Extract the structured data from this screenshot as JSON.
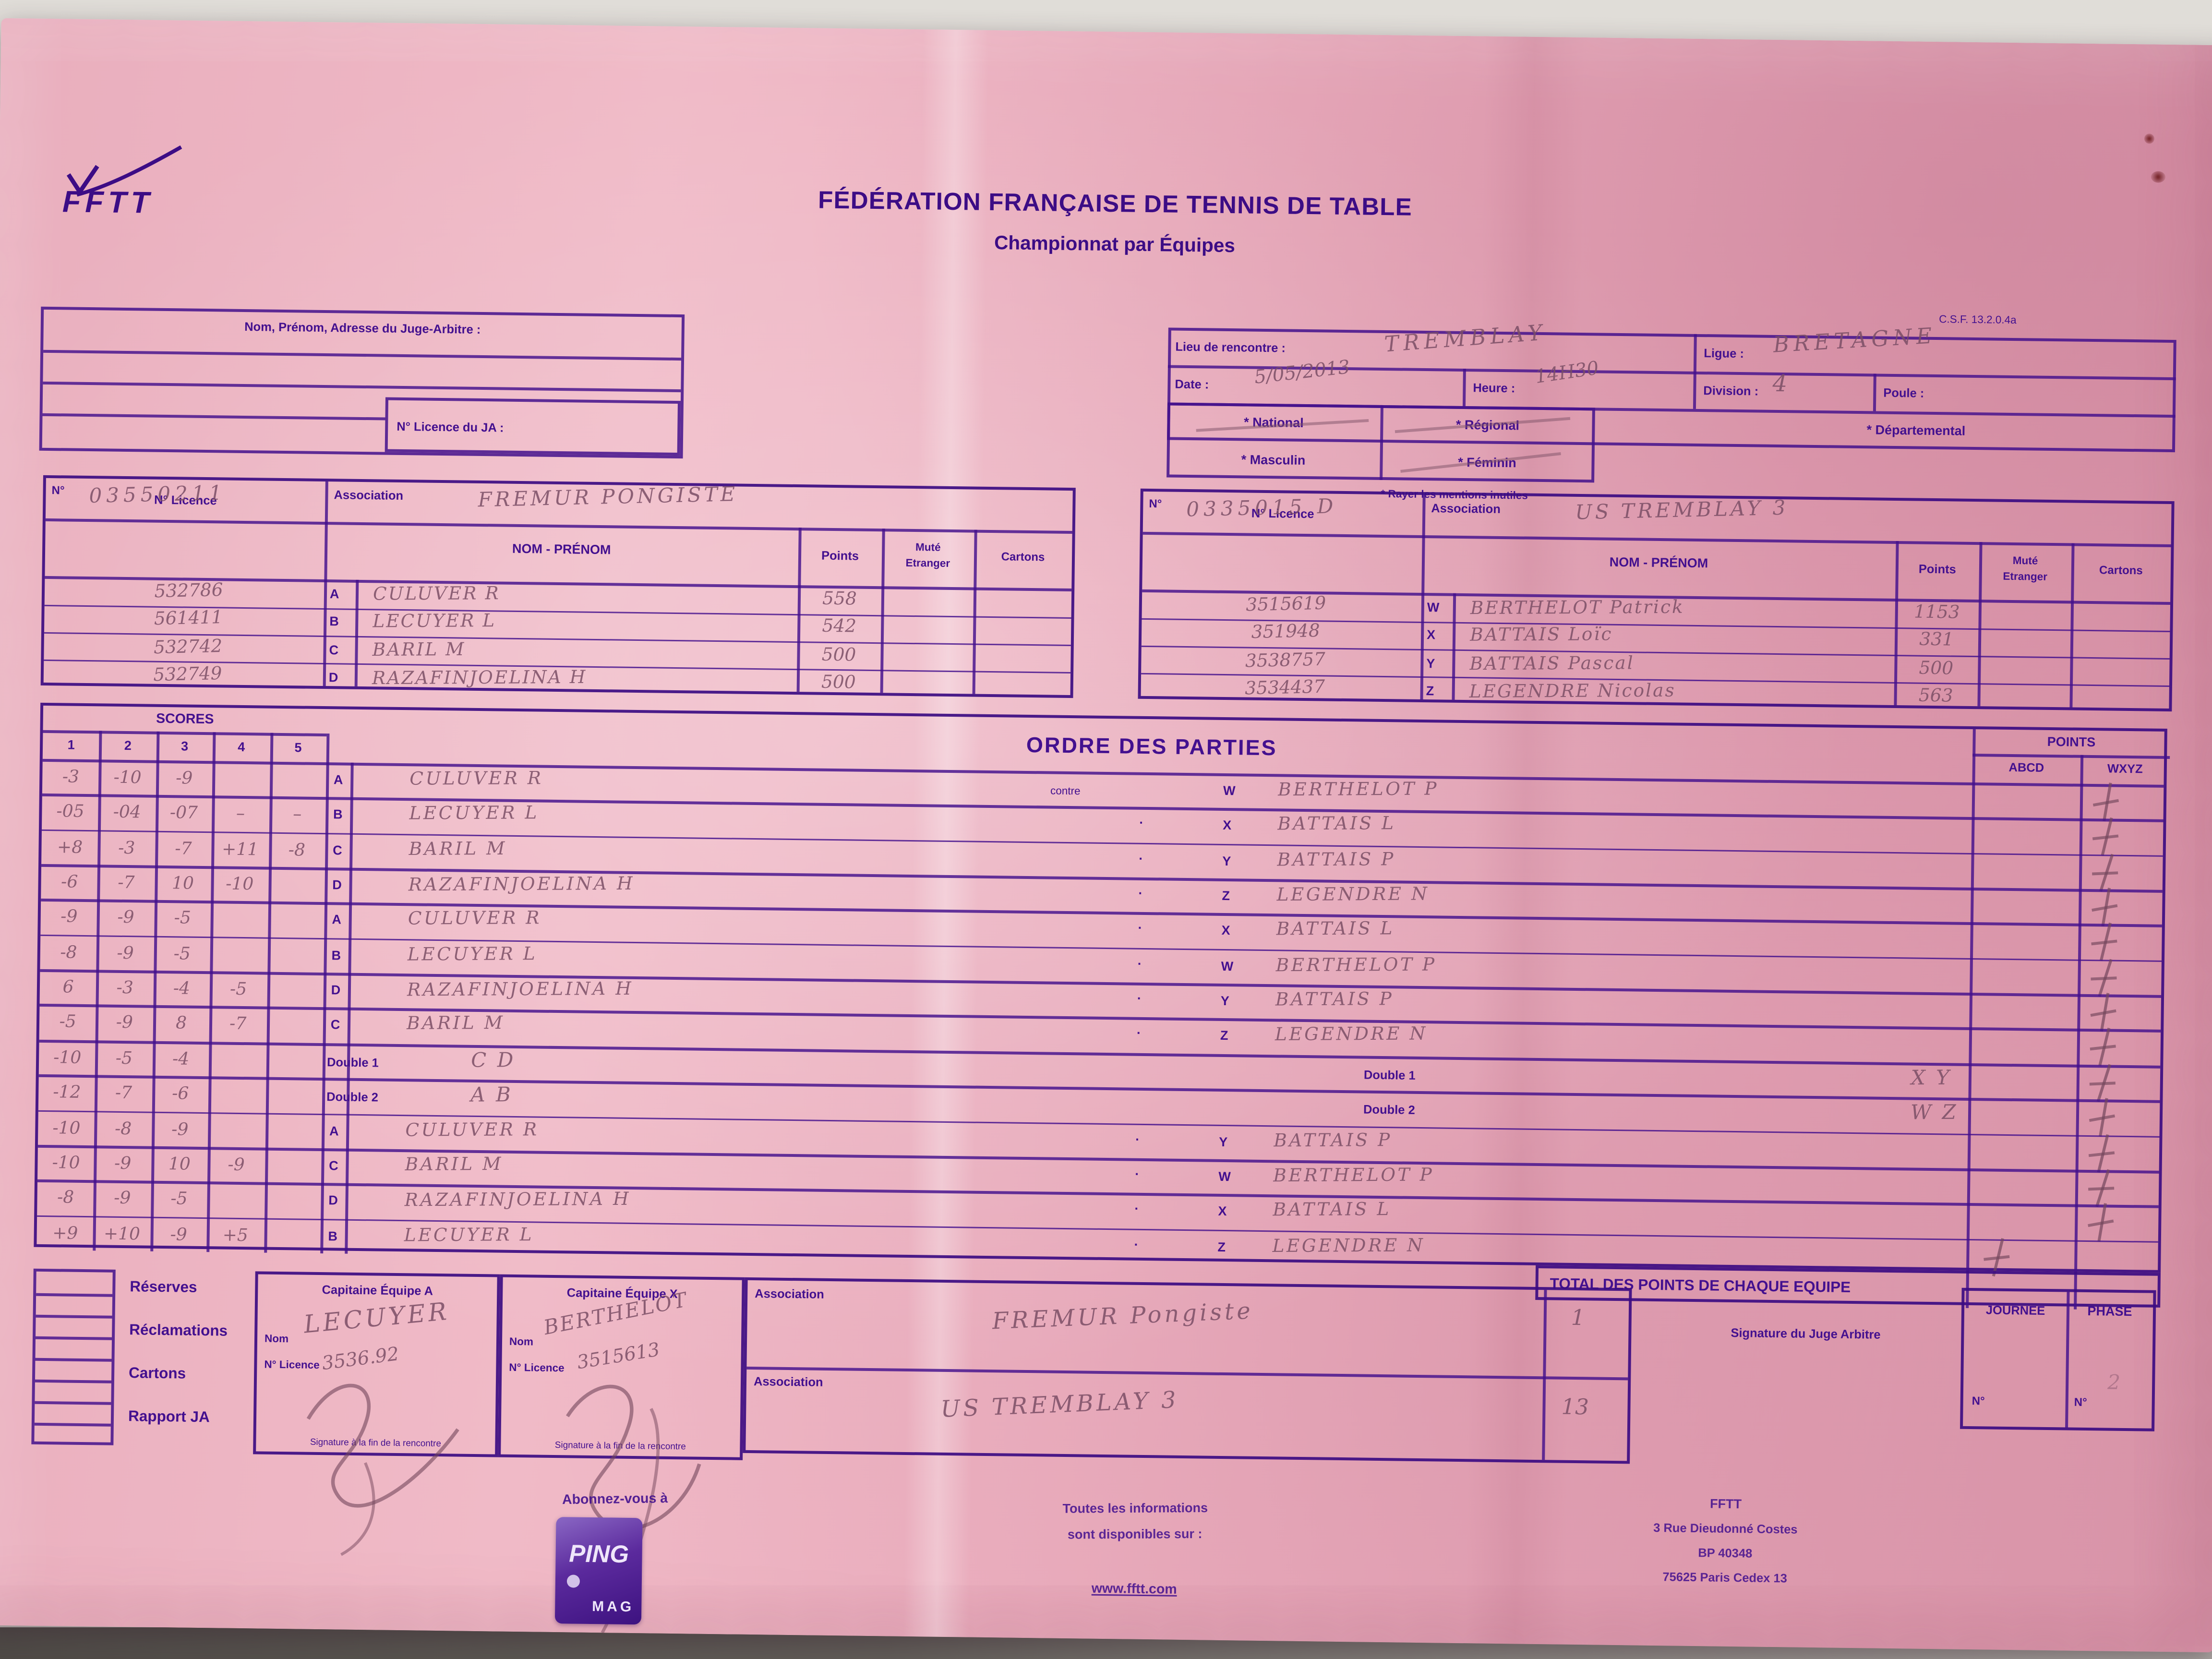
{
  "header": {
    "logo": "FFTT",
    "title": "FÉDÉRATION FRANÇAISE DE TENNIS DE TABLE",
    "subtitle": "Championnat par Équipes",
    "form_ref": "C.S.F. 13.2.0.4a"
  },
  "judge_block": {
    "label": "Nom, Prénom, Adresse du Juge-Arbitre :",
    "licence_label": "N° Licence du JA :"
  },
  "meta": {
    "lieu_label": "Lieu de rencontre :",
    "lieu_value": "TREMBLAY",
    "ligue_label": "Ligue :",
    "ligue_value": "BRETAGNE",
    "date_label": "Date :",
    "date_value": "5/05/2013",
    "heure_label": "Heure :",
    "heure_value": "14H30",
    "division_label": "Division :",
    "division_value": "4",
    "poule_label": "Poule :",
    "poule_value": "",
    "opt_national": "* National",
    "opt_regional": "* Régional",
    "opt_departemental": "* Départemental",
    "opt_masculin": "* Masculin",
    "opt_feminin": "* Féminin",
    "note": "* Rayer les mentions inutiles"
  },
  "table_labels": {
    "numero": "N°",
    "association": "Association",
    "licence": "N° Licence",
    "nom": "NOM - PRÉNOM",
    "points": "Points",
    "mute": "Muté",
    "etranger": "Etranger",
    "cartons": "Cartons"
  },
  "team_a": {
    "numero": "03550211",
    "association": "FREMUR PONGISTE",
    "players": [
      {
        "letter": "A",
        "licence": "532786",
        "name": "CULUVER R",
        "points": "558"
      },
      {
        "letter": "B",
        "licence": "561411",
        "name": "LECUYER L",
        "points": "542"
      },
      {
        "letter": "C",
        "licence": "532742",
        "name": "BARIL M",
        "points": "500"
      },
      {
        "letter": "D",
        "licence": "532749",
        "name": "RAZAFINJOELINA H",
        "points": "500"
      }
    ]
  },
  "team_x": {
    "numero": "0335015 D",
    "association": "US TREMBLAY 3",
    "players": [
      {
        "letter": "W",
        "licence": "3515619",
        "name": "BERTHELOT Patrick",
        "points": "1153"
      },
      {
        "letter": "X",
        "licence": "351948",
        "name": "BATTAIS Loïc",
        "points": "331"
      },
      {
        "letter": "Y",
        "licence": "3538757",
        "name": "BATTAIS Pascal",
        "points": "500"
      },
      {
        "letter": "Z",
        "licence": "3534437",
        "name": "LEGENDRE Nicolas",
        "points": "563"
      }
    ]
  },
  "ordre": {
    "scores_title": "SCORES",
    "score_cols": [
      "1",
      "2",
      "3",
      "4",
      "5"
    ],
    "title": "ORDRE DES PARTIES",
    "contre_label": "contre",
    "points_title": "POINTS",
    "col_abcd": "ABCD",
    "col_wxyz": "WXYZ",
    "total_label": "TOTAL DES POINTS DE CHAQUE EQUIPE",
    "rows": [
      {
        "s": [
          "-3",
          "-10",
          "-9",
          "",
          ""
        ],
        "ll": "A",
        "ln": "CULUVER R",
        "vs": "contre",
        "rl": "W",
        "rn": "BERTHELOT P",
        "tally": "wxyz"
      },
      {
        "s": [
          "-05",
          "-04",
          "-07",
          "–",
          "–"
        ],
        "ll": "B",
        "ln": "LECUYER L",
        "vs": "·",
        "rl": "X",
        "rn": "BATTAIS L",
        "tally": "wxyz"
      },
      {
        "s": [
          "+8",
          "-3",
          "-7",
          "+11",
          "-8"
        ],
        "ll": "C",
        "ln": "BARIL M",
        "vs": "·",
        "rl": "Y",
        "rn": "BATTAIS P",
        "tally": "wxyz"
      },
      {
        "s": [
          "-6",
          "-7",
          "10",
          "-10",
          ""
        ],
        "ll": "D",
        "ln": "RAZAFINJOELINA H",
        "vs": "·",
        "rl": "Z",
        "rn": "LEGENDRE N",
        "tally": "wxyz"
      },
      {
        "s": [
          "-9",
          "-9",
          "-5",
          "",
          ""
        ],
        "ll": "A",
        "ln": "CULUVER R",
        "vs": "·",
        "rl": "X",
        "rn": "BATTAIS L",
        "tally": "wxyz"
      },
      {
        "s": [
          "-8",
          "-9",
          "-5",
          "",
          ""
        ],
        "ll": "B",
        "ln": "LECUYER L",
        "vs": "·",
        "rl": "W",
        "rn": "BERTHELOT P",
        "tally": "wxyz"
      },
      {
        "s": [
          "6",
          "-3",
          "-4",
          "-5",
          ""
        ],
        "ll": "D",
        "ln": "RAZAFINJOELINA H",
        "vs": "·",
        "rl": "Y",
        "rn": "BATTAIS P",
        "tally": "wxyz"
      },
      {
        "s": [
          "-5",
          "-9",
          "8",
          "-7",
          ""
        ],
        "ll": "C",
        "ln": "BARIL M",
        "vs": "·",
        "rl": "Z",
        "rn": "LEGENDRE N",
        "tally": "wxyz"
      },
      {
        "s": [
          "-10",
          "-5",
          "-4",
          "",
          ""
        ],
        "ll": "Double 1",
        "ln": "C D",
        "vs": "Double 1",
        "rl": "",
        "rn": "X Y",
        "tally": "wxyz"
      },
      {
        "s": [
          "-12",
          "-7",
          "-6",
          "",
          ""
        ],
        "ll": "Double 2",
        "ln": "A B",
        "vs": "Double 2",
        "rl": "",
        "rn": "W Z",
        "tally": "wxyz"
      },
      {
        "s": [
          "-10",
          "-8",
          "-9",
          "",
          ""
        ],
        "ll": "A",
        "ln": "CULUVER R",
        "vs": "·",
        "rl": "Y",
        "rn": "BATTAIS P",
        "tally": "wxyz"
      },
      {
        "s": [
          "-10",
          "-9",
          "10",
          "-9",
          ""
        ],
        "ll": "C",
        "ln": "BARIL M",
        "vs": "·",
        "rl": "W",
        "rn": "BERTHELOT P",
        "tally": "wxyz"
      },
      {
        "s": [
          "-8",
          "-9",
          "-5",
          "",
          ""
        ],
        "ll": "D",
        "ln": "RAZAFINJOELINA H",
        "vs": "·",
        "rl": "X",
        "rn": "BATTAIS L",
        "tally": "wxyz"
      },
      {
        "s": [
          "+9",
          "+10",
          "-9",
          "+5",
          ""
        ],
        "ll": "B",
        "ln": "LECUYER L",
        "vs": "·",
        "rl": "Z",
        "rn": "LEGENDRE N",
        "tally": "abcd"
      }
    ]
  },
  "bottom": {
    "checkboxes": [
      "Réserves",
      "Réclamations",
      "Cartons",
      "Rapport JA"
    ],
    "cap_a": {
      "title": "Capitaine Équipe A",
      "nom_label": "Nom",
      "lic_label": "N° Licence",
      "nom": "LECUYER",
      "licence": "3536.92",
      "sig_label": "Signature à la fin de la rencontre"
    },
    "cap_x": {
      "title": "Capitaine Équipe X",
      "nom_label": "Nom",
      "lic_label": "N° Licence",
      "nom": "BERTHELOT",
      "licence": "3515613",
      "sig_label": "Signature à la fin de la rencontre"
    },
    "assoc_label": "Association",
    "assoc1": "FREMUR Pongiste",
    "assoc1_total": "1",
    "assoc2": "US TREMBLAY 3",
    "assoc2_total": "13",
    "judge_sig_label": "Signature du Juge Arbitre",
    "journee_label": "JOURNEE",
    "phase_label": "PHASE",
    "numero_label": "N°",
    "journee_value": "",
    "phase_value": "2"
  },
  "footer": {
    "subscribe": "Abonnez-vous à",
    "mag_top": "PING",
    "mag_bottom": "MAG",
    "info1": "Toutes les informations",
    "info2": "sont disponibles sur :",
    "url": "www.fftt.com",
    "fftt": "FFTT",
    "addr1": "3 Rue Dieudonné Costes",
    "addr2": "BP 40348",
    "addr3": "75625 Paris Cedex 13"
  }
}
